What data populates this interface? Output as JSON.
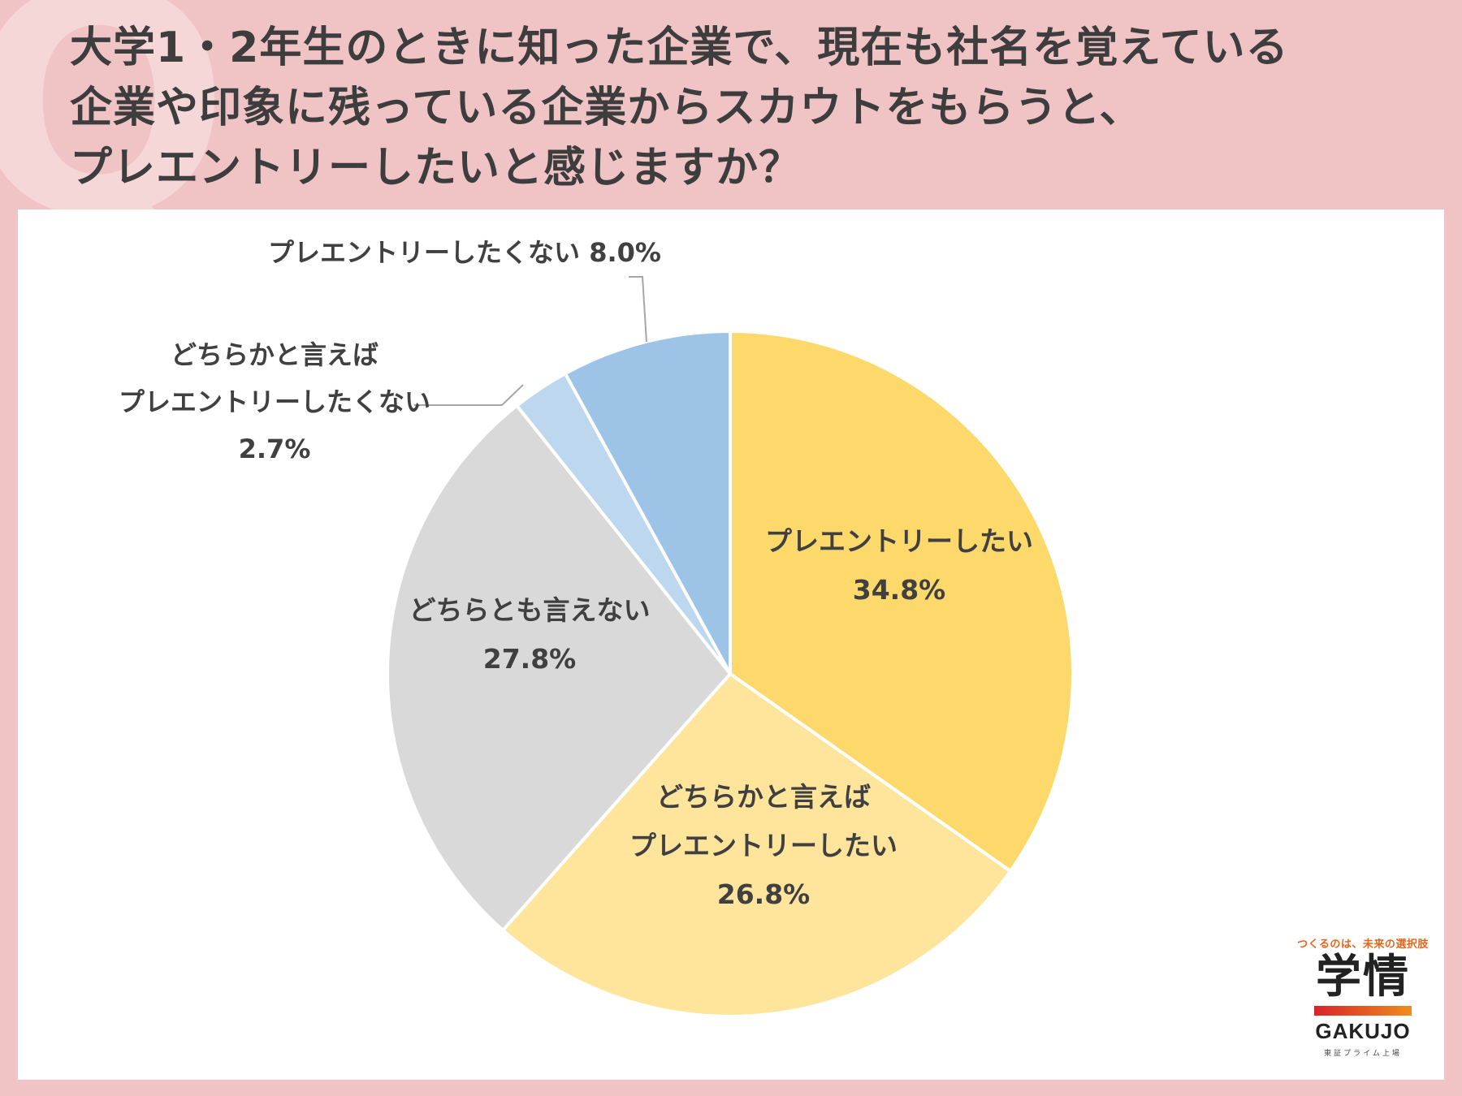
{
  "title_lines": [
    "大学1・2年生のときに知った企業で、現在も社名を覚えている",
    "企業や印象に残っている企業からスカウトをもらうと、",
    "プレエントリーしたいと感じますか？"
  ],
  "background_letter": "Q",
  "chart_data": {
    "type": "pie",
    "start": "12 o'clock",
    "direction": "clockwise",
    "slices": [
      {
        "label": [
          "プレエントリーしたい"
        ],
        "value": 34.8,
        "value_text": "34.8%",
        "color": "#fdd86b"
      },
      {
        "label": [
          "どちらかと言えば",
          "プレエントリーしたい"
        ],
        "value": 26.8,
        "value_text": "26.8%",
        "color": "#fee59b"
      },
      {
        "label": [
          "どちらとも言えない"
        ],
        "value": 27.8,
        "value_text": "27.8%",
        "color": "#d9d9d9"
      },
      {
        "label": [
          "どちらかと言えば",
          "プレエントリーしたくない"
        ],
        "value": 2.7,
        "value_text": "2.7%",
        "color": "#bdd7ee"
      },
      {
        "label": [
          "プレエントリーしたくない"
        ],
        "value": 8.0,
        "value_text": "8.0%",
        "color": "#9dc3e6"
      }
    ]
  },
  "logo": {
    "tagline": "つくるのは、未来の選択肢",
    "kanji": "学情",
    "name": "GAKUJO",
    "sub": "東証プライム上場"
  }
}
